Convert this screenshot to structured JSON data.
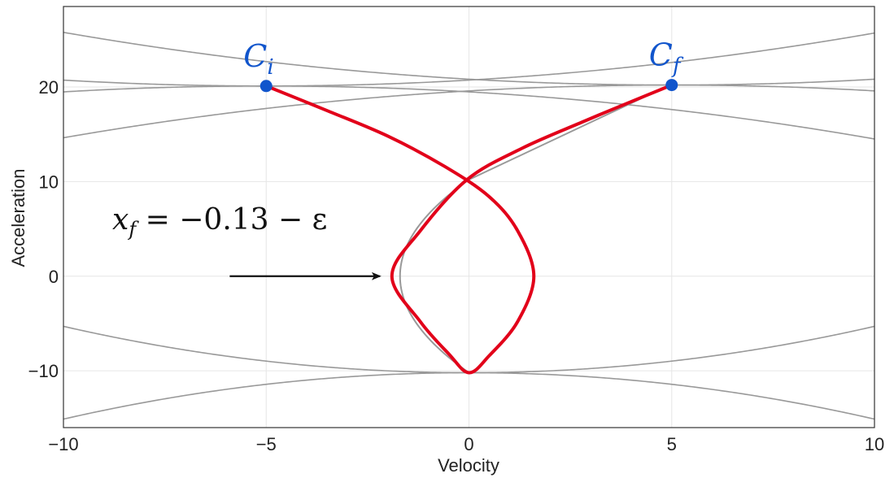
{
  "chart_data": {
    "type": "line",
    "title": "",
    "xlabel": "Velocity",
    "ylabel": "Acceleration",
    "xlim": [
      -10,
      10
    ],
    "ylim": [
      -16,
      28.5
    ],
    "xticks": [
      -10,
      -5,
      0,
      5,
      10
    ],
    "yticks": [
      -10,
      0,
      10,
      20
    ],
    "xtick_labels": [
      "−10",
      "−5",
      "0",
      "5",
      "10"
    ],
    "ytick_labels": [
      "−10",
      "0",
      "10",
      "20"
    ],
    "grid": true,
    "points": [
      {
        "label": "C",
        "sub": "i",
        "x": -5,
        "y": 20.1
      },
      {
        "label": "C",
        "sub": "f",
        "x": 5,
        "y": 20.2
      }
    ],
    "annotation": {
      "text": "x",
      "sub": "f",
      "rest": " = −0.13 − ε",
      "arrow_from": [
        -5.9,
        0
      ],
      "arrow_to": [
        -2.2,
        0
      ]
    },
    "colors": {
      "trajectory": "#e2001a",
      "points": "#1155cc",
      "background_curves": "#999999",
      "grid": "#e6e6e6"
    },
    "background_curves": [
      {
        "name": "",
        "a": 20.1,
        "b": -5,
        "s": 1
      },
      {
        "name": "",
        "a": 20.1,
        "b": -5,
        "s": -1
      },
      {
        "name": "",
        "a": 20.2,
        "b": 5,
        "s": 1
      },
      {
        "name": "",
        "a": 20.2,
        "b": 5,
        "s": -1
      },
      {
        "name": "",
        "a": -10.2,
        "b": 0,
        "s": 1
      },
      {
        "name": "",
        "a": -10.2,
        "b": 0,
        "s": -1
      }
    ],
    "reference_curve": {
      "v_turn": -1.7,
      "y_top": 10.2,
      "y_bottom": -10.2
    },
    "series": [
      {
        "name": "",
        "x": [
          -5,
          -3.5,
          -2,
          -0.6,
          0.5,
          1.2,
          1.6,
          1.2,
          0.5,
          0,
          -0.5,
          -1.2,
          -1.9,
          -1.2,
          -0.05,
          1.3,
          2.8,
          4.2,
          5
        ],
        "y": [
          20.1,
          17.5,
          14.8,
          11.6,
          8.4,
          4.8,
          0,
          -4.8,
          -8.4,
          -10.2,
          -8.2,
          -4.8,
          0,
          4.8,
          10.2,
          13.5,
          16.3,
          18.8,
          20.2
        ]
      }
    ]
  }
}
